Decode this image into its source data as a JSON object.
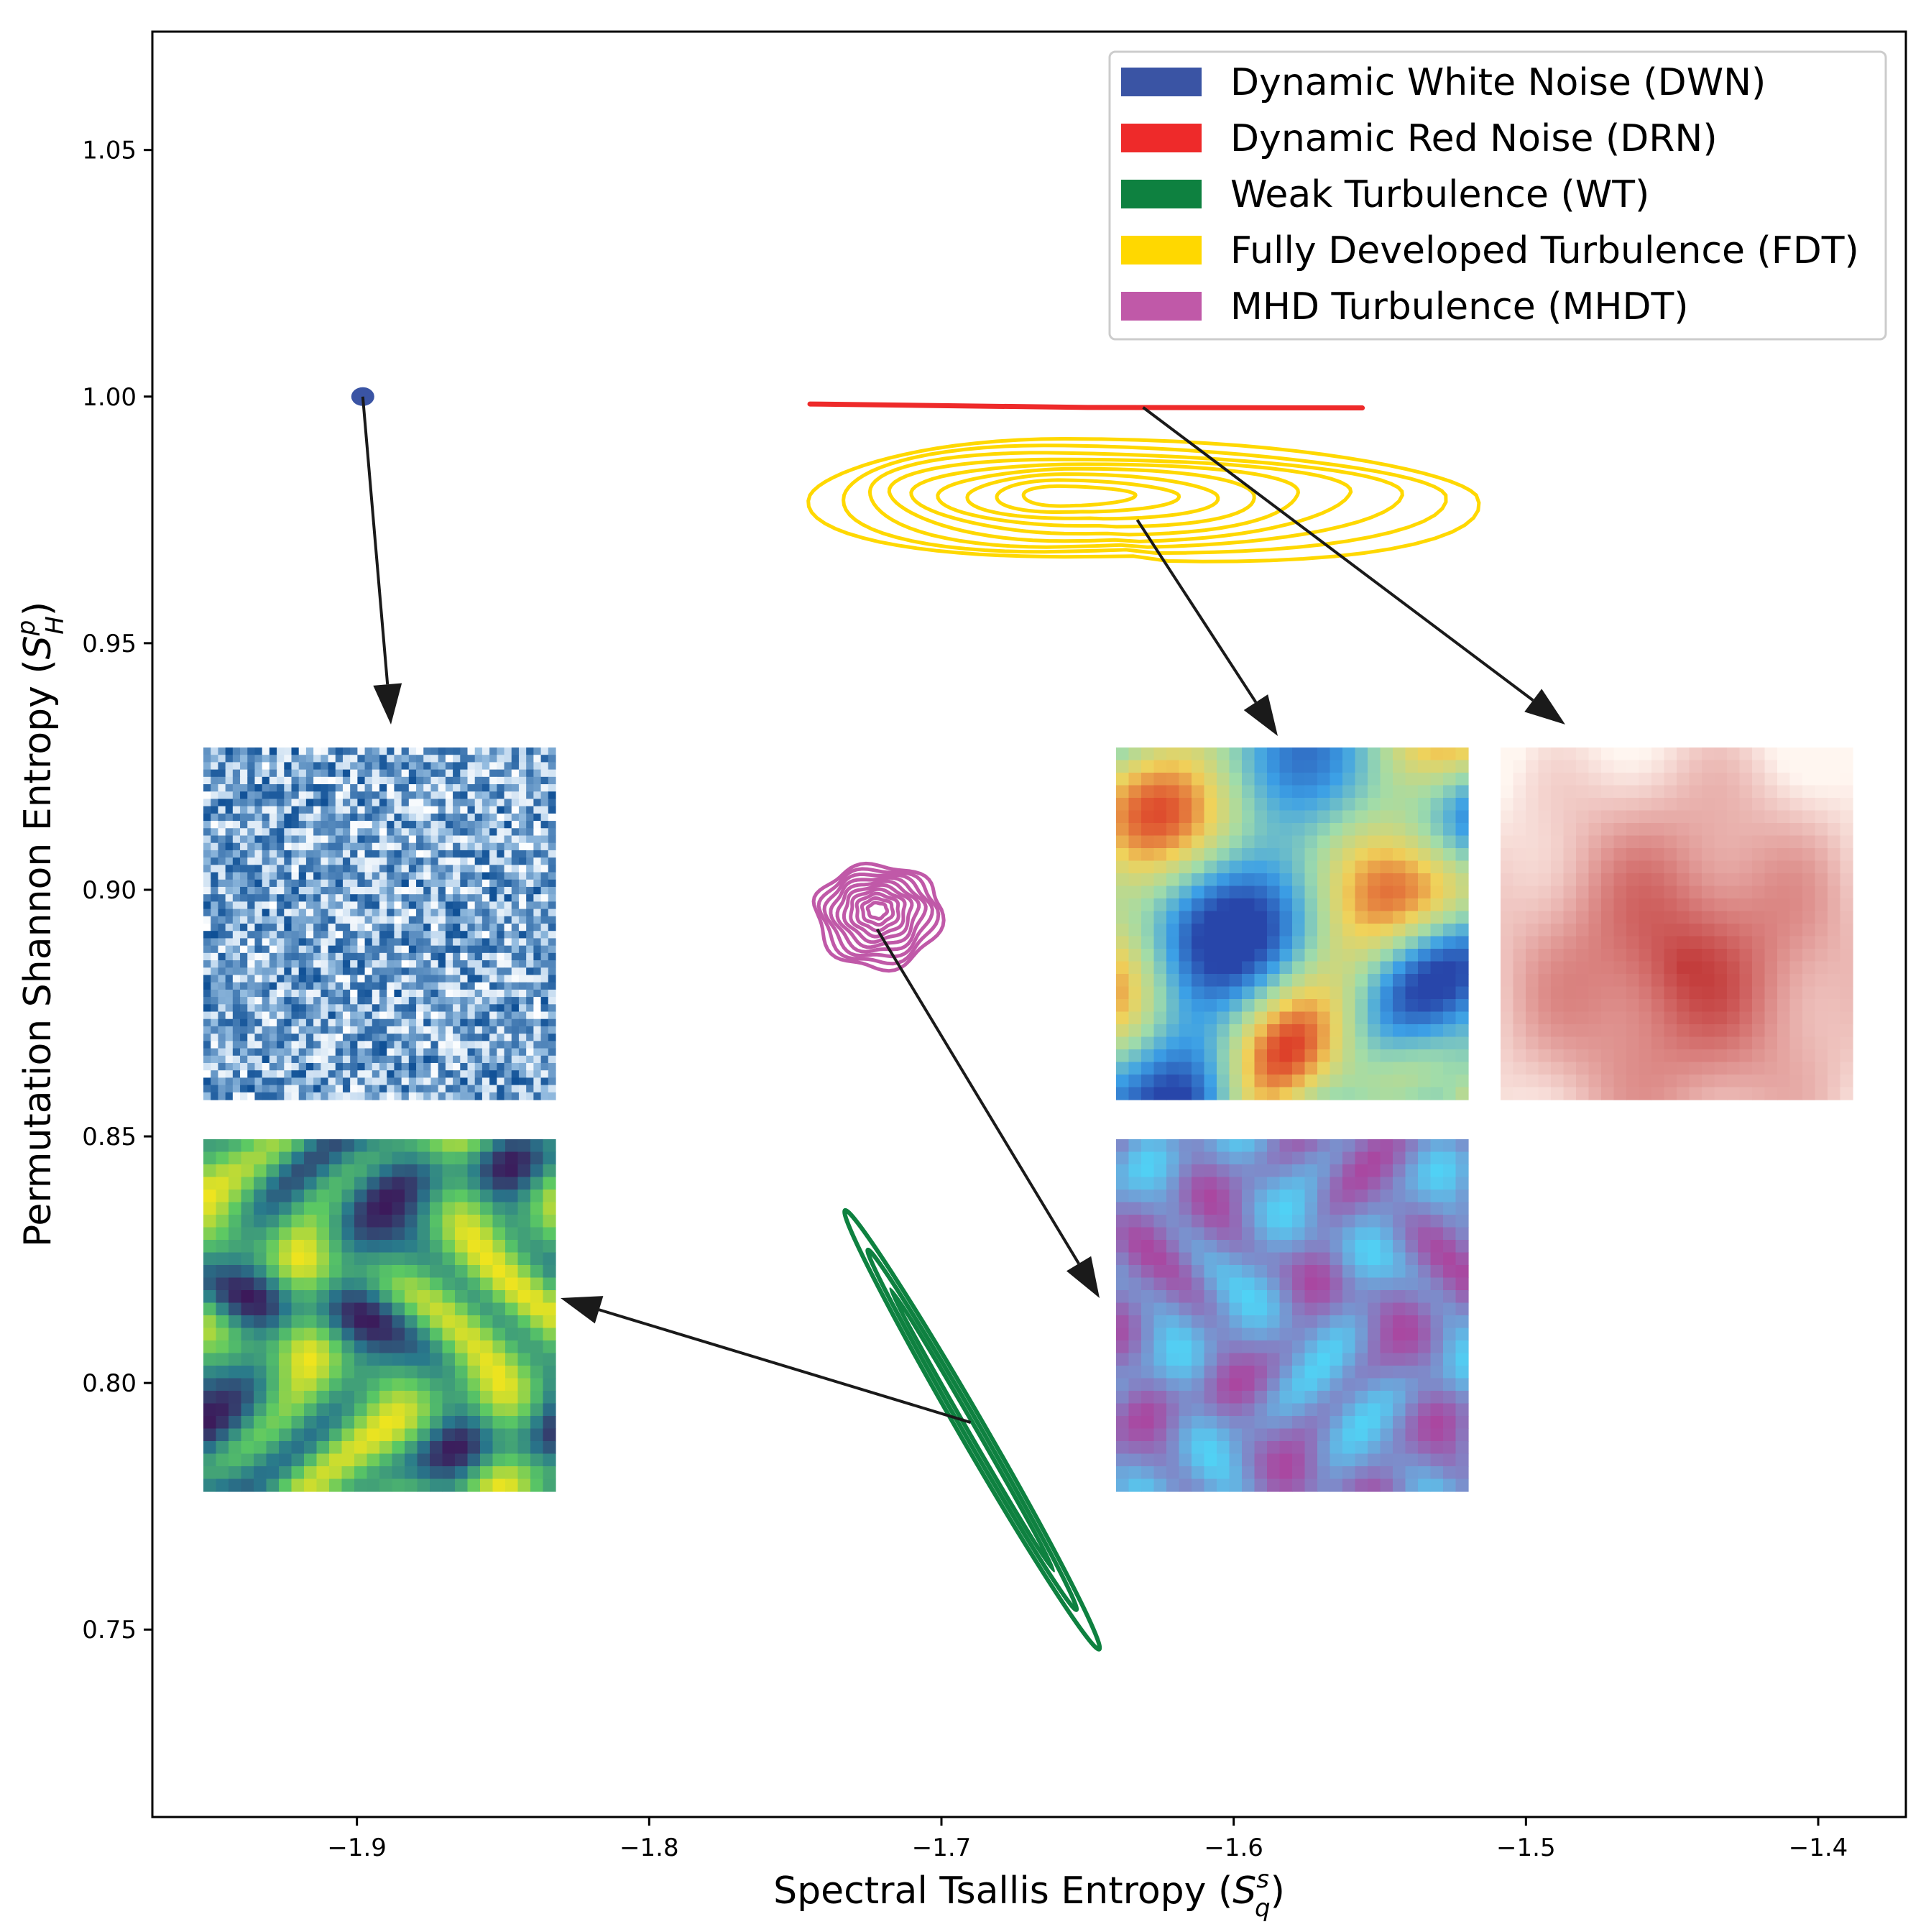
{
  "chart_data": {
    "type": "scatter",
    "title": "",
    "xlabel": {
      "main": "Spectral Tsallis Entropy (",
      "sym": "S",
      "sub": "q",
      "sup": "s",
      "close": ")"
    },
    "ylabel": {
      "main": "Permutation Shannon Entropy (",
      "sym": "S",
      "sub": "H",
      "sup": "p",
      "close": ")"
    },
    "xlim": [
      -1.97,
      -1.37
    ],
    "ylim": [
      0.712,
      1.074
    ],
    "xticks": [
      -1.9,
      -1.8,
      -1.7,
      -1.6,
      -1.5,
      -1.4
    ],
    "xtick_labels": [
      "−1.9",
      "−1.8",
      "−1.7",
      "−1.6",
      "−1.5",
      "−1.4"
    ],
    "yticks": [
      0.75,
      0.8,
      0.85,
      0.9,
      0.95,
      1.0,
      1.05
    ],
    "ytick_labels": [
      "0.75",
      "0.80",
      "0.85",
      "0.90",
      "0.95",
      "1.00",
      "1.05"
    ],
    "grid": false,
    "legend_position": "top-right",
    "series": [
      {
        "key": "dwn",
        "name": "Dynamic White Noise (DWN)",
        "color": "#3a54a4",
        "kind": "point",
        "center": [
          -1.898,
          1.0
        ]
      },
      {
        "key": "drn",
        "name": "Dynamic Red Noise (DRN)",
        "color": "#ee2a2a",
        "kind": "line",
        "x": [
          -1.745,
          -1.65,
          -1.556
        ],
        "y": [
          0.9985,
          0.9978,
          0.9977
        ]
      },
      {
        "key": "wt",
        "name": "Weak Turbulence (WT)",
        "color": "#0e8140",
        "kind": "ellipse",
        "ends": [
          [
            -1.733,
            0.835
          ],
          [
            -1.646,
            0.746
          ]
        ],
        "half_width": 0.004,
        "rings": 3
      },
      {
        "key": "fdt",
        "name": "Fully Developed Turbulence (FDT)",
        "color": "#ffd800",
        "kind": "contours",
        "levels": 9,
        "center": [
          -1.658,
          0.98
        ],
        "outer": {
          "x_range": [
            -1.745,
            -1.517
          ],
          "y_range": [
            0.967,
            0.991
          ]
        }
      },
      {
        "key": "mhdt",
        "name": "MHD Turbulence (MHDT)",
        "color": "#c059a8",
        "kind": "contours",
        "levels": 10,
        "center": [
          -1.722,
          0.896
        ],
        "outer": {
          "x_range": [
            -1.743,
            -1.7
          ],
          "y_range": [
            0.884,
            0.905
          ]
        }
      }
    ],
    "insets": [
      {
        "key": "dwn",
        "label": "white-noise-snapshot",
        "colormap": "blues"
      },
      {
        "key": "fdt",
        "label": "turbulence-snapshot",
        "colormap": "jet"
      },
      {
        "key": "drn",
        "label": "red-noise-snapshot",
        "colormap": "reds"
      },
      {
        "key": "wt",
        "label": "weak-turbulence-snapshot",
        "colormap": "viridis"
      },
      {
        "key": "mhdt",
        "label": "mhd-turbulence-snapshot",
        "colormap": "cool-magenta"
      }
    ],
    "arrows": [
      {
        "from": "dwn",
        "to": "dwn"
      },
      {
        "from": "drn",
        "to": "drn"
      },
      {
        "from": "fdt",
        "to": "fdt"
      },
      {
        "from": "mhdt",
        "to": "mhdt"
      },
      {
        "from": "wt",
        "to": "wt"
      }
    ]
  }
}
